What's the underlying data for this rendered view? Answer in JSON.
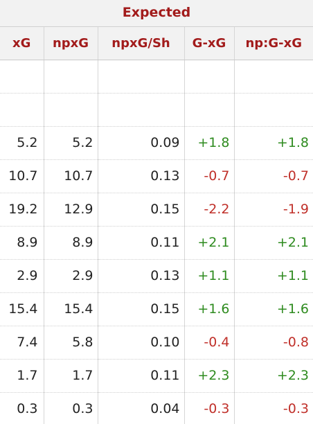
{
  "group_title": "Expected",
  "columns": [
    "xG",
    "npxG",
    "npxG/Sh",
    "G-xG",
    "np:G-xG"
  ],
  "rows": [
    {
      "xg": "5.2",
      "npxg": "5.2",
      "npxg_sh": "0.09",
      "g_xg": "+1.8",
      "np_g_xg": "+1.8"
    },
    {
      "xg": "10.7",
      "npxg": "10.7",
      "npxg_sh": "0.13",
      "g_xg": "-0.7",
      "np_g_xg": "-0.7"
    },
    {
      "xg": "19.2",
      "npxg": "12.9",
      "npxg_sh": "0.15",
      "g_xg": "-2.2",
      "np_g_xg": "-1.9"
    },
    {
      "xg": "8.9",
      "npxg": "8.9",
      "npxg_sh": "0.11",
      "g_xg": "+2.1",
      "np_g_xg": "+2.1"
    },
    {
      "xg": "2.9",
      "npxg": "2.9",
      "npxg_sh": "0.13",
      "g_xg": "+1.1",
      "np_g_xg": "+1.1"
    },
    {
      "xg": "15.4",
      "npxg": "15.4",
      "npxg_sh": "0.15",
      "g_xg": "+1.6",
      "np_g_xg": "+1.6"
    },
    {
      "xg": "7.4",
      "npxg": "5.8",
      "npxg_sh": "0.10",
      "g_xg": "-0.4",
      "np_g_xg": "-0.8"
    },
    {
      "xg": "1.7",
      "npxg": "1.7",
      "npxg_sh": "0.11",
      "g_xg": "+2.3",
      "np_g_xg": "+2.3"
    },
    {
      "xg": "0.3",
      "npxg": "0.3",
      "npxg_sh": "0.04",
      "g_xg": "-0.3",
      "np_g_xg": "-0.3"
    }
  ],
  "colors": {
    "header_text": "#a21b1b",
    "positive": "#2e8b1f",
    "negative": "#c0302a"
  }
}
